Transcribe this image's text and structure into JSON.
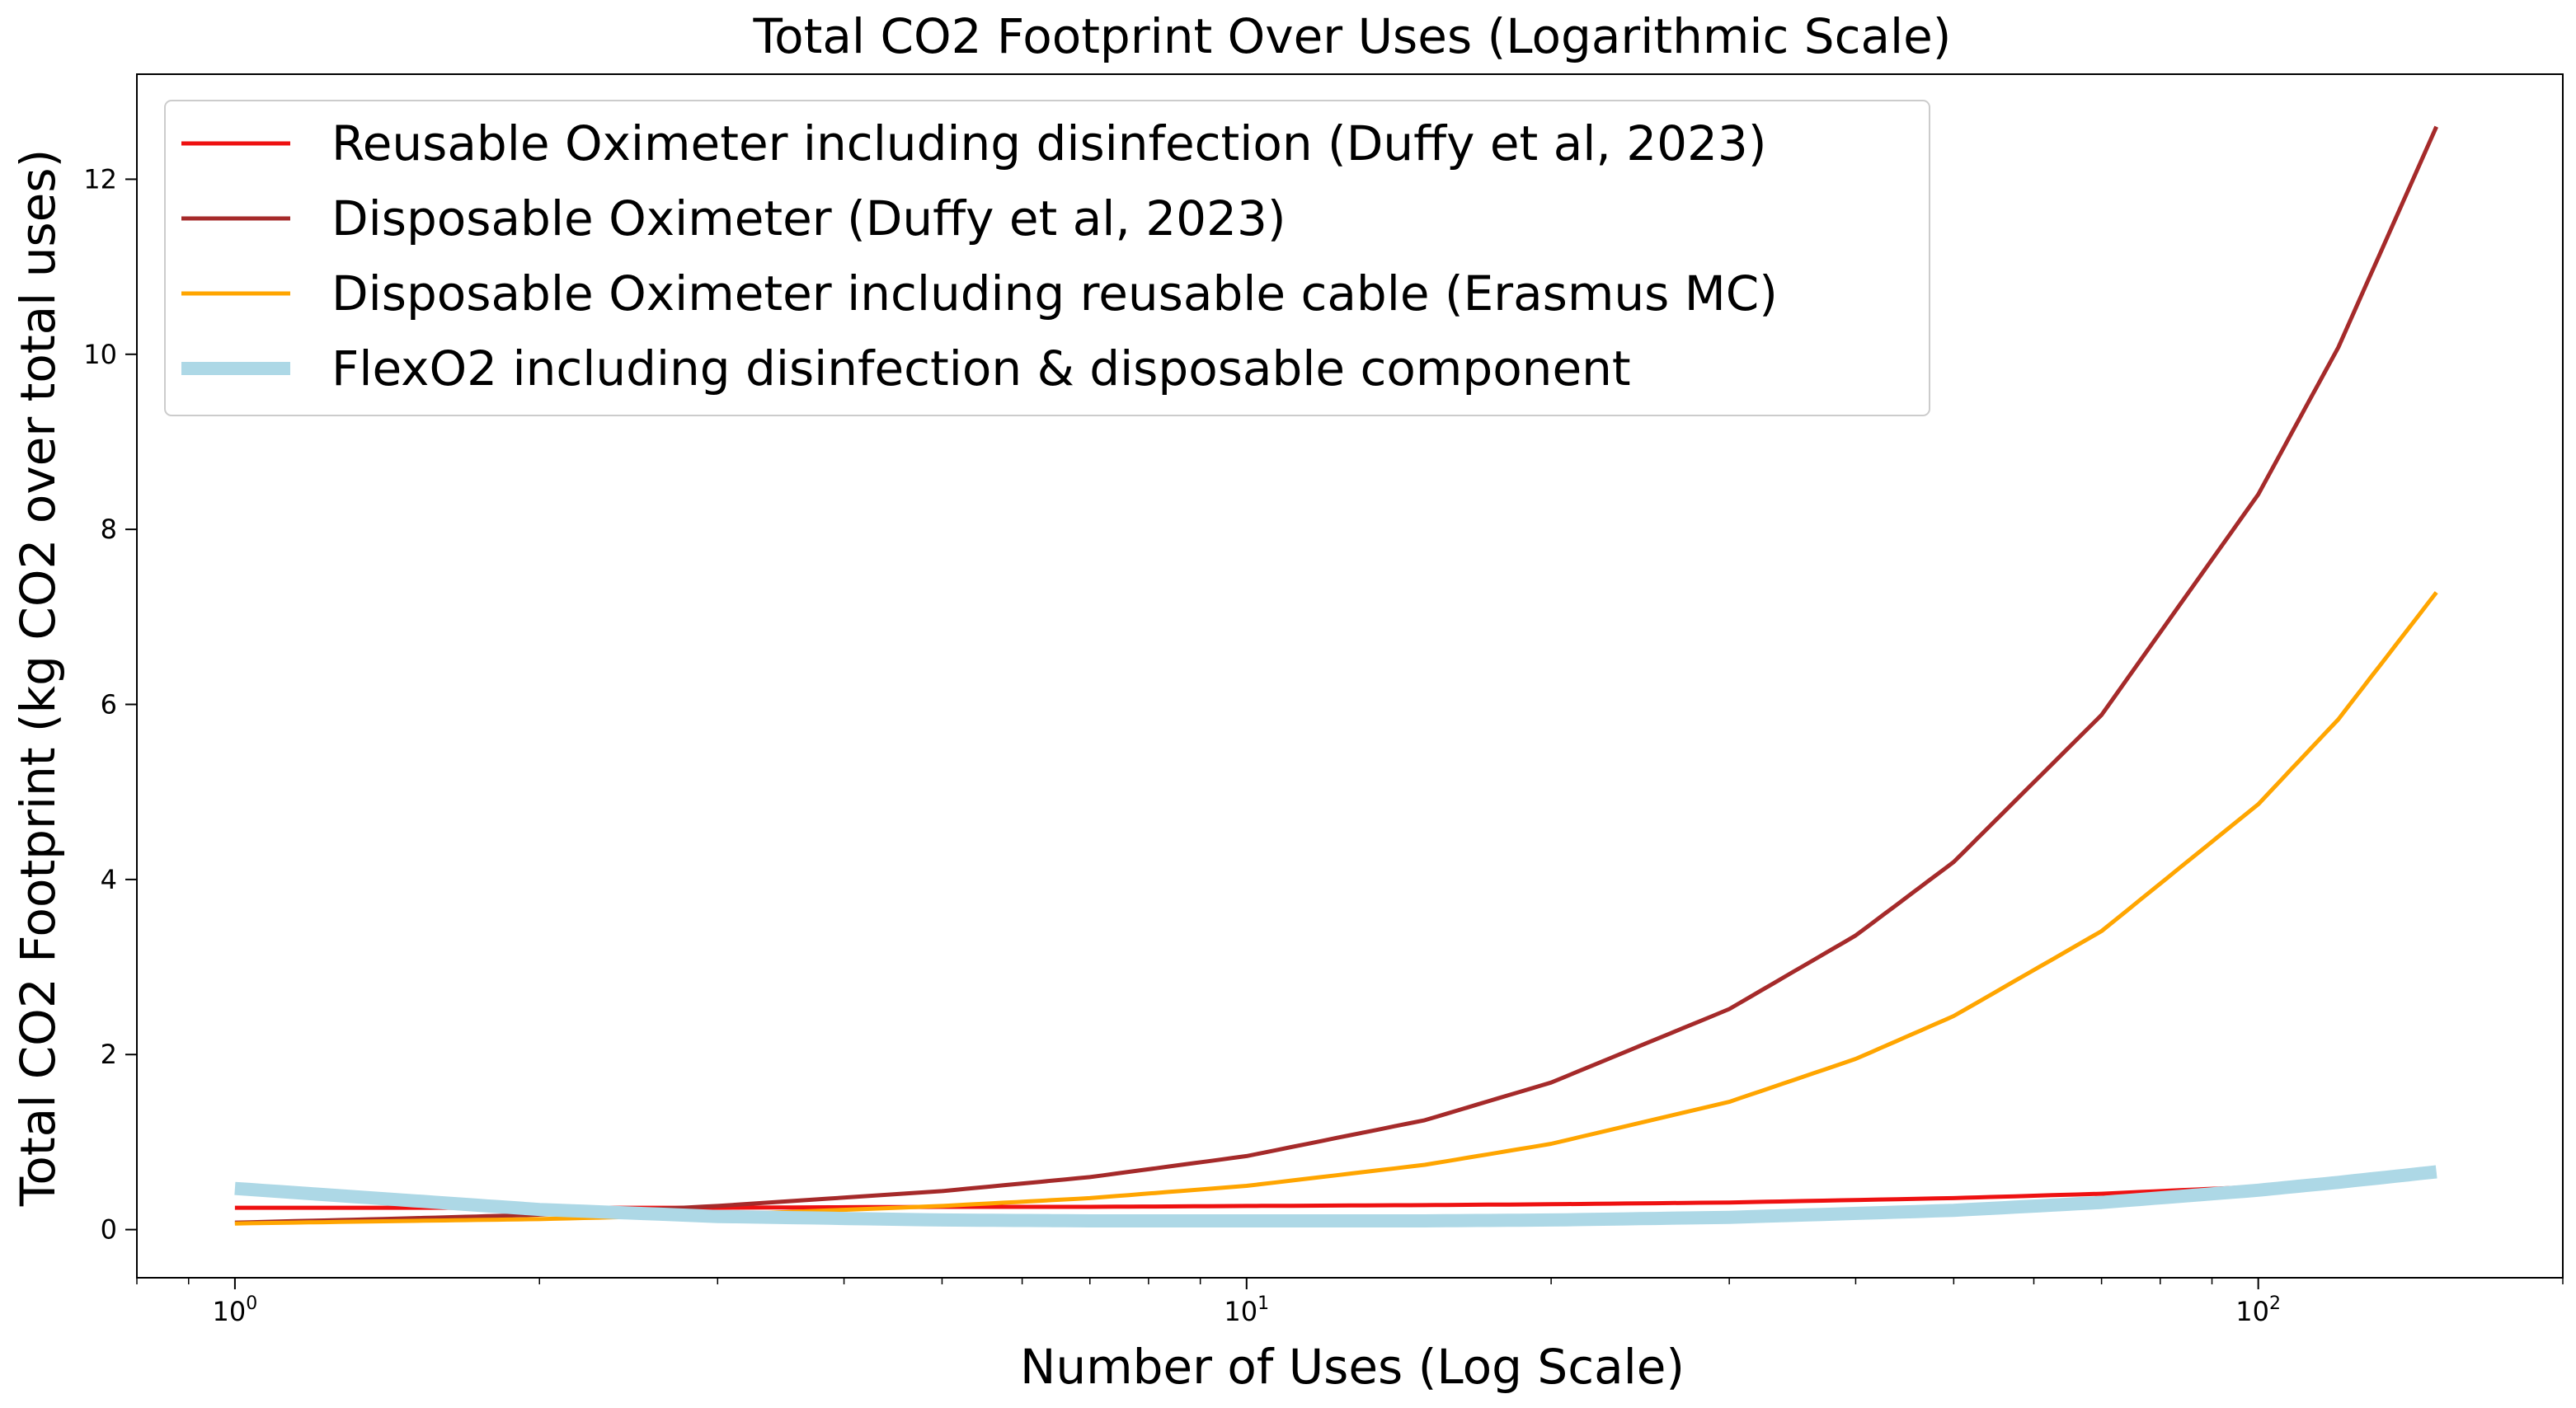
{
  "chart_data": {
    "type": "line",
    "title": "Total CO2 Footprint Over Uses (Logarithmic Scale)",
    "xlabel": "Number of Uses (Log Scale)",
    "ylabel": "Total CO2 Footprint (kg CO2 over total uses)",
    "xscale": "log",
    "xlim": [
      0.8,
      200
    ],
    "ylim": [
      -0.55,
      13.2
    ],
    "x_ticks": [
      {
        "base": "10",
        "exp": "0",
        "value": 1
      },
      {
        "base": "10",
        "exp": "1",
        "value": 10
      },
      {
        "base": "10",
        "exp": "2",
        "value": 100
      }
    ],
    "y_ticks": [
      0,
      2,
      4,
      6,
      8,
      10,
      12
    ],
    "legend_position": "upper-left",
    "series": [
      {
        "name": "Reusable Oximeter including disinfection (Duffy et al, 2023)",
        "color": "#ee1111",
        "width": "normal",
        "x": [
          1,
          1.5,
          2,
          3,
          5,
          7,
          10,
          15,
          20,
          30,
          50,
          70,
          100,
          120,
          150
        ],
        "y": [
          0.25,
          0.25,
          0.25,
          0.25,
          0.26,
          0.26,
          0.27,
          0.28,
          0.29,
          0.31,
          0.36,
          0.41,
          0.49,
          0.55,
          0.63
        ]
      },
      {
        "name": "Disposable Oximeter (Duffy et al, 2023)",
        "color": "#a52a2a",
        "width": "normal",
        "x": [
          1,
          1.5,
          2,
          3,
          5,
          7,
          10,
          15,
          20,
          30,
          40,
          50,
          70,
          100,
          120,
          150
        ],
        "y": [
          0.08,
          0.13,
          0.17,
          0.27,
          0.44,
          0.6,
          0.84,
          1.25,
          1.68,
          2.52,
          3.36,
          4.2,
          5.88,
          8.4,
          10.08,
          12.6
        ]
      },
      {
        "name": "Disposable Oximeter including reusable cable (Erasmus MC)",
        "color": "#ffa500",
        "width": "normal",
        "x": [
          1,
          1.5,
          2,
          3,
          5,
          7,
          10,
          15,
          20,
          30,
          40,
          50,
          70,
          100,
          120,
          150
        ],
        "y": [
          0.07,
          0.1,
          0.12,
          0.17,
          0.27,
          0.36,
          0.5,
          0.74,
          0.98,
          1.46,
          1.95,
          2.44,
          3.41,
          4.86,
          5.83,
          7.28
        ]
      },
      {
        "name": "FlexO2 including disinfection & disposable component",
        "color": "#add8e6",
        "width": "thick",
        "x": [
          1,
          1.5,
          2,
          3,
          5,
          7,
          10,
          15,
          20,
          30,
          50,
          70,
          100,
          120,
          150
        ],
        "y": [
          0.47,
          0.33,
          0.23,
          0.15,
          0.11,
          0.1,
          0.1,
          0.1,
          0.11,
          0.14,
          0.22,
          0.31,
          0.45,
          0.54,
          0.66
        ]
      }
    ]
  }
}
